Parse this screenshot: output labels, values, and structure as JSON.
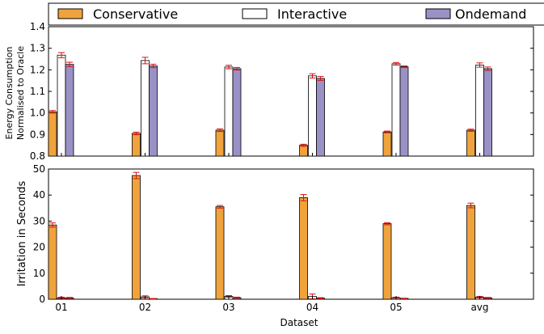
{
  "chart_data": [
    {
      "type": "bar",
      "ylabel_lines": [
        "Energy Consumption",
        "Normalised to Oracle"
      ],
      "ylim": [
        0.8,
        1.4
      ],
      "yticks": [
        "0.8",
        "0.9",
        "1.0",
        "1.1",
        "1.2",
        "1.3",
        "1.4"
      ],
      "categories": [
        "01",
        "02",
        "03",
        "04",
        "05",
        "avg"
      ],
      "series": [
        {
          "name": "Conservative",
          "values": [
            1.005,
            0.905,
            0.92,
            0.85,
            0.912,
            0.92
          ],
          "errors": [
            0.006,
            0.006,
            0.006,
            0.005,
            0.004,
            0.005
          ]
        },
        {
          "name": "Interactive",
          "values": [
            1.268,
            1.243,
            1.213,
            1.172,
            1.228,
            1.222
          ],
          "errors": [
            0.012,
            0.015,
            0.008,
            0.01,
            0.006,
            0.01
          ]
        },
        {
          "name": "Ondemand",
          "values": [
            1.225,
            1.218,
            1.205,
            1.16,
            1.214,
            1.205
          ],
          "errors": [
            0.01,
            0.008,
            0.006,
            0.009,
            0.004,
            0.008
          ]
        }
      ],
      "grid": false
    },
    {
      "type": "bar",
      "ylabel": "Irritation in Seconds",
      "xlabel": "Dataset",
      "ylim": [
        0,
        50
      ],
      "yticks": [
        "0",
        "10",
        "20",
        "30",
        "40",
        "50"
      ],
      "categories": [
        "01",
        "02",
        "03",
        "04",
        "05",
        "avg"
      ],
      "series": [
        {
          "name": "Conservative",
          "values": [
            28.5,
            47.5,
            35.5,
            39,
            29,
            36
          ],
          "errors": [
            0.8,
            1.2,
            0.5,
            1.2,
            0.4,
            0.9
          ]
        },
        {
          "name": "Interactive",
          "values": [
            0.5,
            0.9,
            1.1,
            1.1,
            0.6,
            0.8
          ],
          "errors": [
            0.3,
            0.4,
            0.3,
            0.9,
            0.2,
            0.3
          ]
        },
        {
          "name": "Ondemand",
          "values": [
            0.5,
            0.2,
            0.6,
            0.4,
            0.3,
            0.5
          ],
          "errors": [
            0.2,
            0.1,
            0.2,
            0.2,
            0.1,
            0.2
          ]
        }
      ],
      "grid": false
    }
  ],
  "legend": {
    "placement": "top",
    "items": [
      {
        "label": "Conservative",
        "color": "#f0a33c"
      },
      {
        "label": "Interactive",
        "color": "#ffffff"
      },
      {
        "label": "Ondemand",
        "color": "#9a92c6"
      }
    ]
  },
  "colors": {
    "error_bar": "#dd1111",
    "axis": "#000000"
  }
}
